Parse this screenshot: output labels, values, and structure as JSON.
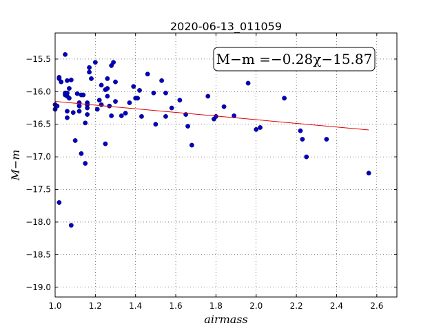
{
  "chart_data": {
    "type": "scatter",
    "title": "2020-06-13_011059",
    "xlabel": "airmass",
    "ylabel": "M−m",
    "xlim": [
      1.0,
      2.7
    ],
    "ylim": [
      -15.1,
      -19.15
    ],
    "y_inverted": true,
    "grid": true,
    "xticks": [
      1.0,
      1.2,
      1.4,
      1.6,
      1.8,
      2.0,
      2.2,
      2.4,
      2.6
    ],
    "xtick_labels": [
      "1.0",
      "1.2",
      "1.4",
      "1.6",
      "1.8",
      "2.0",
      "2.2",
      "2.4",
      "2.6"
    ],
    "yticks": [
      -15.5,
      -16.0,
      -16.5,
      -17.0,
      -17.5,
      -18.0,
      -18.5,
      -19.0
    ],
    "ytick_labels": [
      "−15.5",
      "−16.0",
      "−16.5",
      "−17.0",
      "−17.5",
      "−18.0",
      "−18.5",
      "−19.0"
    ],
    "annotation": "M−m =−0.28χ−15.87",
    "fit": {
      "slope": -0.28,
      "intercept": -15.87,
      "x_range": [
        1.0,
        2.56
      ],
      "color": "#e00000"
    },
    "marker_color": "#0000cc",
    "points": [
      [
        1.0,
        -16.2
      ],
      [
        1.0,
        -16.27
      ],
      [
        1.01,
        -16.22
      ],
      [
        1.02,
        -15.8
      ],
      [
        1.02,
        -15.78
      ],
      [
        1.03,
        -15.85
      ],
      [
        1.05,
        -15.43
      ],
      [
        1.05,
        -16.05
      ],
      [
        1.05,
        -16.02
      ],
      [
        1.06,
        -15.83
      ],
      [
        1.06,
        -16.07
      ],
      [
        1.06,
        -16.02
      ],
      [
        1.06,
        -16.3
      ],
      [
        1.06,
        -16.4
      ],
      [
        1.07,
        -16.1
      ],
      [
        1.07,
        -15.95
      ],
      [
        1.08,
        -15.82
      ],
      [
        1.09,
        -16.32
      ],
      [
        1.1,
        -16.75
      ],
      [
        1.11,
        -16.03
      ],
      [
        1.12,
        -16.17
      ],
      [
        1.12,
        -16.22
      ],
      [
        1.12,
        -16.3
      ],
      [
        1.13,
        -16.05
      ],
      [
        1.14,
        -16.05
      ],
      [
        1.15,
        -16.48
      ],
      [
        1.16,
        -16.17
      ],
      [
        1.16,
        -16.2
      ],
      [
        1.16,
        -16.25
      ],
      [
        1.16,
        -16.35
      ],
      [
        1.17,
        -15.63
      ],
      [
        1.17,
        -15.7
      ],
      [
        1.18,
        -15.8
      ],
      [
        1.2,
        -15.55
      ],
      [
        1.21,
        -16.27
      ],
      [
        1.22,
        -16.13
      ],
      [
        1.23,
        -15.9
      ],
      [
        1.23,
        -16.2
      ],
      [
        1.25,
        -15.97
      ],
      [
        1.26,
        -15.8
      ],
      [
        1.26,
        -15.95
      ],
      [
        1.26,
        -16.07
      ],
      [
        1.27,
        -16.22
      ],
      [
        1.28,
        -15.6
      ],
      [
        1.28,
        -16.37
      ],
      [
        1.29,
        -15.55
      ],
      [
        1.3,
        -15.85
      ],
      [
        1.3,
        -16.15
      ],
      [
        1.33,
        -16.37
      ],
      [
        1.35,
        -16.33
      ],
      [
        1.37,
        -16.17
      ],
      [
        1.39,
        -15.92
      ],
      [
        1.4,
        -16.1
      ],
      [
        1.41,
        -16.1
      ],
      [
        1.42,
        -15.98
      ],
      [
        1.43,
        -16.38
      ],
      [
        1.46,
        -15.73
      ],
      [
        1.49,
        -16.02
      ],
      [
        1.5,
        -16.5
      ],
      [
        1.53,
        -15.83
      ],
      [
        1.55,
        -16.02
      ],
      [
        1.55,
        -16.38
      ],
      [
        1.58,
        -16.25
      ],
      [
        1.62,
        -16.13
      ],
      [
        1.65,
        -16.35
      ],
      [
        1.66,
        -16.53
      ],
      [
        1.68,
        -16.82
      ],
      [
        1.76,
        -16.07
      ],
      [
        1.79,
        -16.42
      ],
      [
        1.8,
        -16.38
      ],
      [
        1.84,
        -16.23
      ],
      [
        1.89,
        -16.37
      ],
      [
        1.96,
        -15.87
      ],
      [
        2.0,
        -16.58
      ],
      [
        2.02,
        -16.55
      ],
      [
        2.14,
        -16.1
      ],
      [
        2.22,
        -16.6
      ],
      [
        2.23,
        -16.73
      ],
      [
        2.25,
        -17.0
      ],
      [
        2.35,
        -16.73
      ],
      [
        2.56,
        -17.25
      ],
      [
        1.02,
        -17.7
      ],
      [
        1.08,
        -18.05
      ],
      [
        1.13,
        -16.95
      ],
      [
        1.15,
        -17.1
      ],
      [
        1.25,
        -16.8
      ]
    ]
  }
}
